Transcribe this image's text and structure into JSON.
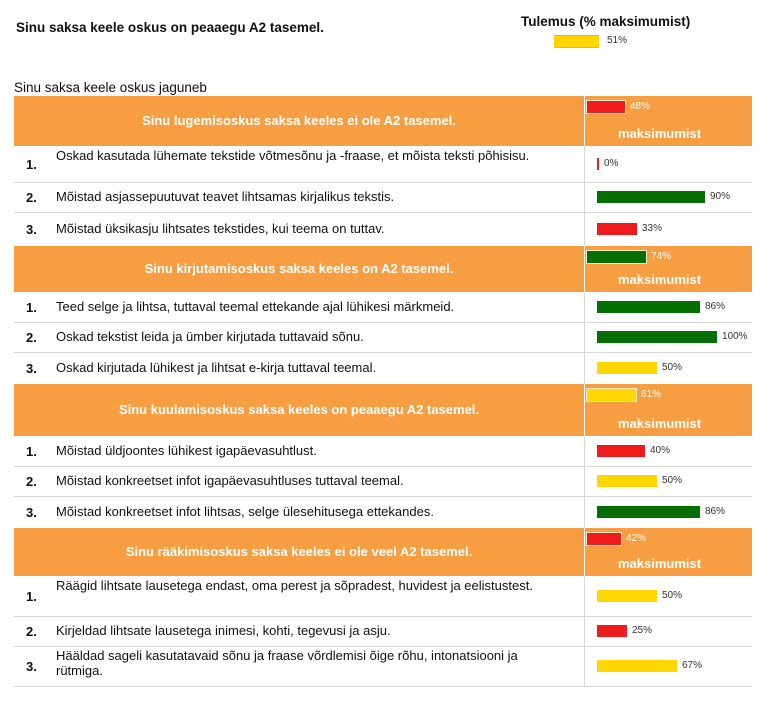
{
  "header": {
    "title": "Sinu saksa keele oskus on peaaegu A2 tasemel.",
    "result_label": "Tulemus (% maksimumist)",
    "overall_pct": "51%",
    "overall_value": 51,
    "overall_color": "#ffd700"
  },
  "subtitle": "Sinu saksa keele oskus jaguneb",
  "colors": {
    "red": "#ee1c1c",
    "green": "#056f05",
    "yellow": "#ffd700",
    "header_orange": "#f79e42"
  },
  "sections": [
    {
      "title": "Sinu lugemisoskus saksa keeles ei ole A2 tasemel.",
      "pct": "48%",
      "value": 48,
      "color": "red",
      "unit": "maksimumist",
      "items": [
        {
          "num": "1.",
          "text": "Oskad kasutada lühemate tekstide võtmesõnu ja -fraase, et mõista teksti põhisisu.",
          "pct": "0%",
          "value": 0,
          "color": "red"
        },
        {
          "num": "2.",
          "text": "Mõistad asjassepuutuvat teavet lihtsamas kirjalikus tekstis.",
          "pct": "90%",
          "value": 90,
          "color": "green"
        },
        {
          "num": "3.",
          "text": "Mõistad üksikasju lihtsates tekstides, kui teema on tuttav.",
          "pct": "33%",
          "value": 33,
          "color": "red"
        }
      ]
    },
    {
      "title": "Sinu kirjutamisoskus saksa keeles on A2 tasemel.",
      "pct": "74%",
      "value": 74,
      "color": "green",
      "unit": "maksimumist",
      "items": [
        {
          "num": "1.",
          "text": "Teed selge ja lihtsa, tuttaval teemal ettekande ajal lühikesi märkmeid.",
          "pct": "86%",
          "value": 86,
          "color": "green"
        },
        {
          "num": "2.",
          "text": "Oskad tekstist leida ja ümber kirjutada tuttavaid sõnu.",
          "pct": "100%",
          "value": 100,
          "color": "green"
        },
        {
          "num": "3.",
          "text": "Oskad kirjutada lühikest ja lihtsat e-kirja tuttaval teemal.",
          "pct": "50%",
          "value": 50,
          "color": "yellow"
        }
      ]
    },
    {
      "title": "Sinu kuulamisoskus saksa keeles on peaaegu A2 tasemel.",
      "pct": "61%",
      "value": 61,
      "color": "yellow",
      "unit": "maksimumist",
      "items": [
        {
          "num": "1.",
          "text": "Mõistad üldjoontes lühikest igapäevasuhtlust.",
          "pct": "40%",
          "value": 40,
          "color": "red"
        },
        {
          "num": "2.",
          "text": "Mõistad konkreetset infot igapäevasuhtluses tuttaval teemal.",
          "pct": "50%",
          "value": 50,
          "color": "yellow"
        },
        {
          "num": "3.",
          "text": "Mõistad konkreetset infot lihtsas, selge ülesehitusega ettekandes.",
          "pct": "86%",
          "value": 86,
          "color": "green"
        }
      ]
    },
    {
      "title": "Sinu rääkimisoskus saksa keeles ei ole veel A2 tasemel.",
      "pct": "42%",
      "value": 42,
      "color": "red",
      "unit": "maksimumist",
      "items": [
        {
          "num": "1.",
          "text": "Räägid lihtsate lausetega endast, oma perest ja sõpradest, huvidest ja eelistustest.",
          "pct": "50%",
          "value": 50,
          "color": "yellow"
        },
        {
          "num": "2.",
          "text": "Kirjeldad lihtsate lausetega inimesi, kohti, tegevusi ja asju.",
          "pct": "25%",
          "value": 25,
          "color": "red"
        },
        {
          "num": "3.",
          "text": "Hääldad sageli kasutatavaid sõnu ja fraase võrdlemisi õige rõhu, intonatsiooni ja rütmiga.",
          "pct": "67%",
          "value": 67,
          "color": "yellow"
        }
      ]
    }
  ]
}
